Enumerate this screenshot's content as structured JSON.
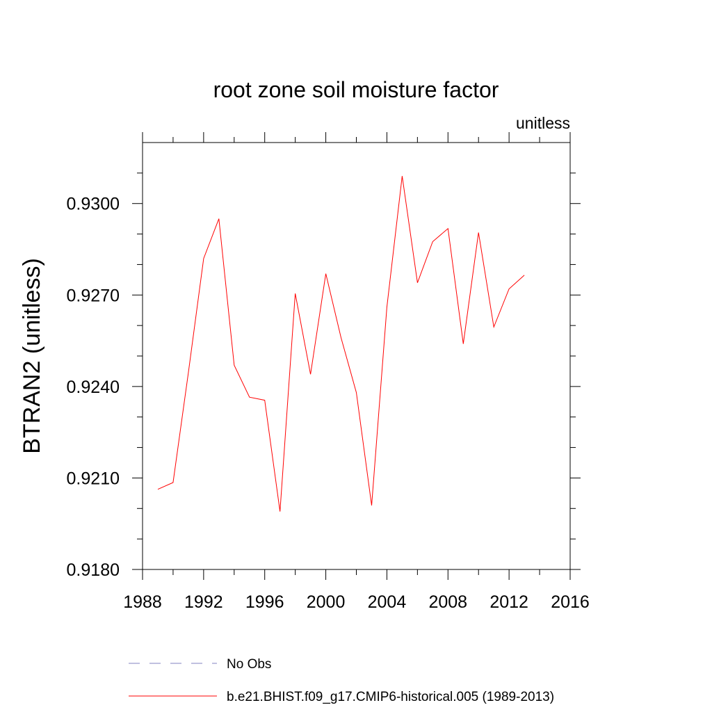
{
  "chart_data": {
    "type": "line",
    "title": "root zone soil moisture factor",
    "subtitle": "unitless",
    "xlabel": "",
    "ylabel": "BTRAN2  (unitless)",
    "xlim": [
      1988,
      2016
    ],
    "ylim": [
      0.918,
      0.932
    ],
    "x_ticks": [
      1988,
      1992,
      1996,
      2000,
      2004,
      2008,
      2012,
      2016
    ],
    "x_tick_labels": [
      "1988",
      "1992",
      "1996",
      "2000",
      "2004",
      "2008",
      "2012",
      "2016"
    ],
    "y_ticks": [
      0.918,
      0.921,
      0.924,
      0.927,
      0.93
    ],
    "y_tick_labels": [
      "0.9180",
      "0.9210",
      "0.9240",
      "0.9270",
      "0.9300"
    ],
    "grid": false,
    "legend_position": "bottom",
    "series": [
      {
        "name": "b.e21.BHIST.f09_g17.CMIP6-historical.005 (1989-2013)",
        "color": "#ff0000",
        "dash": "solid",
        "x": [
          1989,
          1990,
          1991,
          1992,
          1993,
          1994,
          1995,
          1996,
          1997,
          1998,
          1999,
          2000,
          2001,
          2002,
          2003,
          2004,
          2005,
          2006,
          2007,
          2008,
          2009,
          2010,
          2011,
          2012,
          2013
        ],
        "values": [
          0.92063,
          0.92085,
          0.92445,
          0.9282,
          0.9295,
          0.9247,
          0.92365,
          0.92355,
          0.9199,
          0.92705,
          0.9244,
          0.9277,
          0.9256,
          0.9238,
          0.9201,
          0.9266,
          0.9309,
          0.9274,
          0.92875,
          0.92918,
          0.9254,
          0.92905,
          0.92595,
          0.9272,
          0.92765
        ]
      }
    ],
    "legend": [
      {
        "label": "No Obs",
        "color": "#8080c0",
        "dash": "dashed"
      },
      {
        "label": "b.e21.BHIST.f09_g17.CMIP6-historical.005 (1989-2013)",
        "color": "#ff0000",
        "dash": "solid"
      }
    ]
  }
}
